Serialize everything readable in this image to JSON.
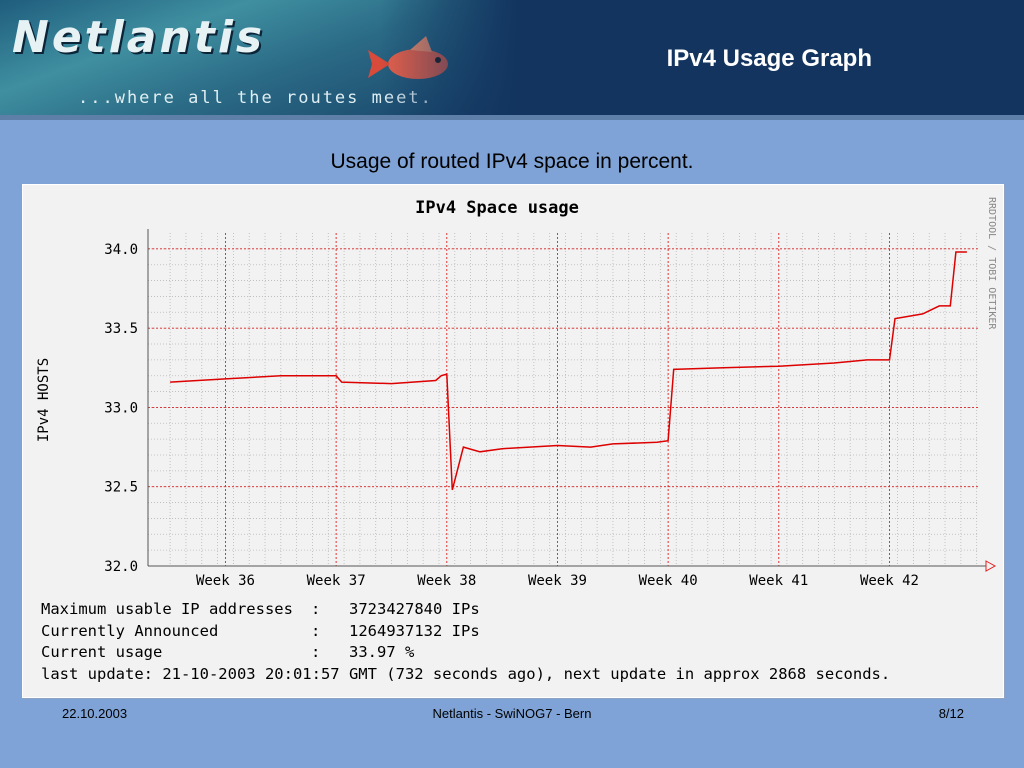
{
  "header": {
    "logo_text": "Netlantis",
    "tagline": "...where all the routes meet.",
    "slide_title": "IPv4 Usage Graph"
  },
  "subtitle": "Usage of routed IPv4 space in percent.",
  "chart_data": {
    "type": "line",
    "title": "IPv4 Space usage",
    "ylabel": "IPv4 HOSTS",
    "watermark": "RRDTOOL / TOBI OETIKER",
    "ylim": [
      32.0,
      34.1
    ],
    "yticks": [
      "34.0",
      "33.5",
      "33.0",
      "32.5",
      "32.0"
    ],
    "ytick_values": [
      34.0,
      33.5,
      33.0,
      32.5,
      32.0
    ],
    "xticks": [
      "Week 36",
      "Week 37",
      "Week 38",
      "Week 39",
      "Week 40",
      "Week 41",
      "Week 42"
    ],
    "grid": true,
    "series_color": "#dd0000",
    "series": [
      {
        "x": [
          35.5,
          36.0,
          36.5,
          36.9,
          37.0,
          37.05,
          37.5,
          37.9,
          37.95,
          38.0,
          38.05,
          38.15,
          38.3,
          38.5,
          39.0,
          39.3,
          39.5,
          39.9,
          40.0,
          40.05,
          40.5,
          41.0,
          41.5,
          41.8,
          42.0,
          42.05,
          42.3,
          42.45,
          42.55,
          42.6,
          42.7
        ],
        "values": [
          33.16,
          33.18,
          33.2,
          33.2,
          33.2,
          33.16,
          33.15,
          33.17,
          33.2,
          33.21,
          32.48,
          32.75,
          32.72,
          32.74,
          32.76,
          32.75,
          32.77,
          32.78,
          32.79,
          33.24,
          33.25,
          33.26,
          33.28,
          33.3,
          33.3,
          33.56,
          33.59,
          33.64,
          33.64,
          33.98,
          33.98
        ]
      }
    ]
  },
  "stats": {
    "rows": [
      {
        "label": "Maximum usable IP addresses",
        "value": "3723427840 IPs"
      },
      {
        "label": "Currently Announced",
        "value": "1264937132 IPs"
      },
      {
        "label": "Current usage",
        "value": "33.97 %"
      }
    ],
    "last_update": "last update: 21-10-2003 20:01:57 GMT (732 seconds ago), next update in approx 2868 seconds."
  },
  "footer": {
    "date": "22.10.2003",
    "center": "Netlantis - SwiNOG7 - Bern",
    "page": "8/12"
  }
}
